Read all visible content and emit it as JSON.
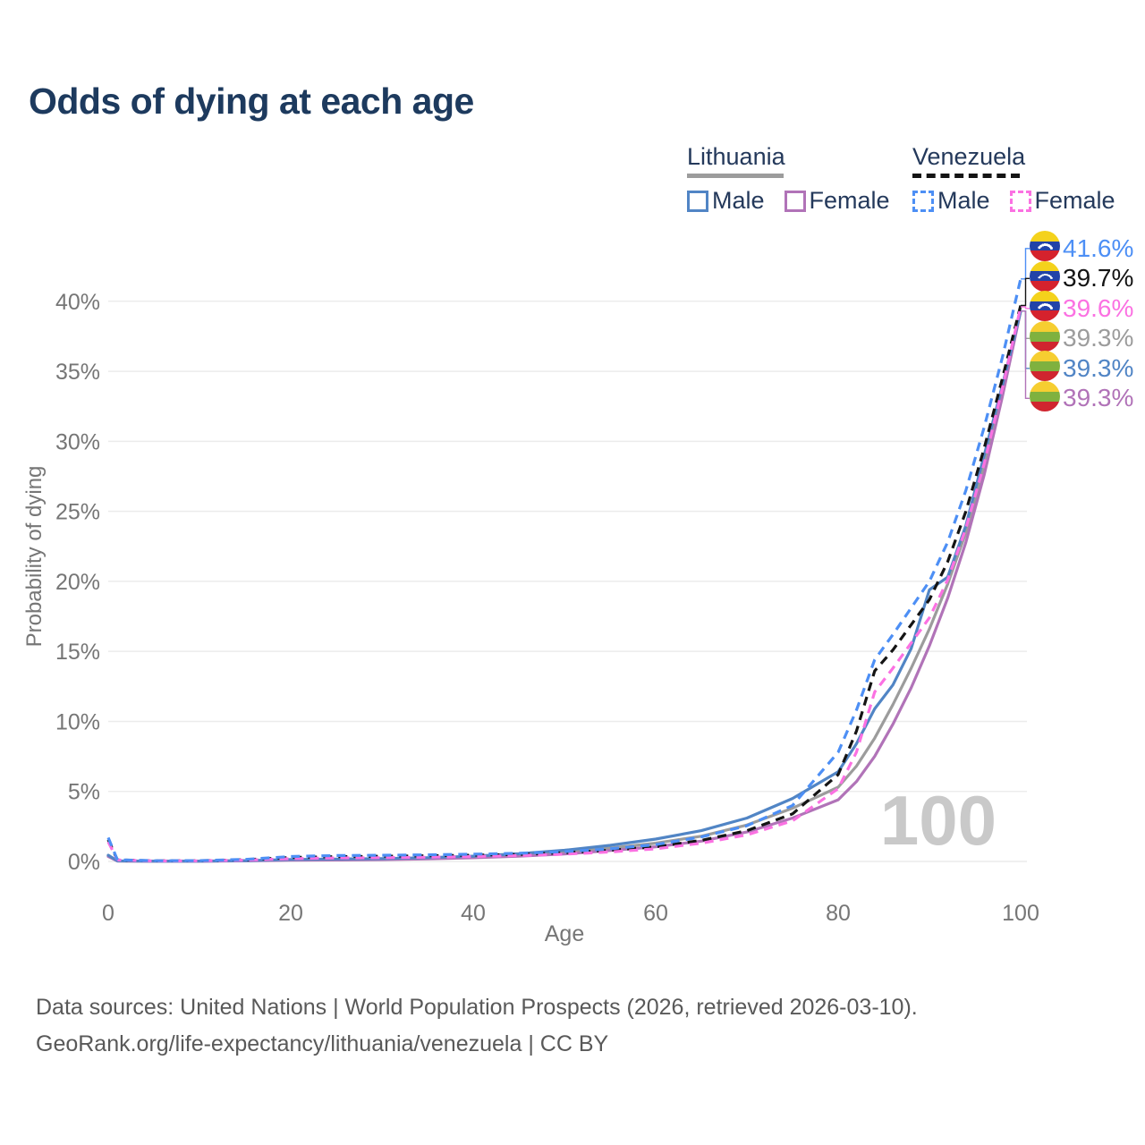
{
  "title": "Odds of dying at each age",
  "legend": {
    "groups": [
      {
        "country": "Lithuania",
        "style": "solid",
        "underline_color": "#9c9c9c",
        "items": [
          {
            "label": "Male",
            "color": "#5185c5"
          },
          {
            "label": "Female",
            "color": "#b173b8"
          }
        ]
      },
      {
        "country": "Venezuela",
        "style": "dashed",
        "underline_color": "#141414",
        "items": [
          {
            "label": "Male",
            "color": "#4d8ff5"
          },
          {
            "label": "Female",
            "color": "#fb71e2"
          }
        ]
      }
    ]
  },
  "axes": {
    "y_title": "Probability of dying",
    "x_title": "Age",
    "y_ticks": [
      "0%",
      "5%",
      "10%",
      "15%",
      "20%",
      "25%",
      "30%",
      "35%",
      "40%"
    ],
    "x_ticks": [
      "0",
      "20",
      "40",
      "60",
      "80",
      "100"
    ]
  },
  "watermark": "100",
  "end_labels": [
    {
      "text": "41.6%",
      "color": "#4d8ff5",
      "flag": "venezuela",
      "series": "venezuela_male"
    },
    {
      "text": "39.7%",
      "color": "#141414",
      "flag": "venezuela",
      "series": "venezuela_both"
    },
    {
      "text": "39.6%",
      "color": "#fb71e2",
      "flag": "venezuela",
      "series": "venezuela_female"
    },
    {
      "text": "39.3%",
      "color": "#9c9c9c",
      "flag": "lithuania",
      "series": "lithuania_both"
    },
    {
      "text": "39.3%",
      "color": "#5185c5",
      "flag": "lithuania",
      "series": "lithuania_male"
    },
    {
      "text": "39.3%",
      "color": "#b173b8",
      "flag": "lithuania",
      "series": "lithuania_female"
    }
  ],
  "footer": {
    "line1": "Data sources: United Nations | World Population Prospects (2026, retrieved 2026-03-10).",
    "line2": "GeoRank.org/life-expectancy/lithuania/venezuela | CC BY"
  },
  "colors": {
    "title": "#1d3a5e",
    "axis_text": "#767676",
    "gridline": "#ececec",
    "watermark": "#c9c9c9"
  },
  "flag_palettes": {
    "venezuela": {
      "bands": [
        "#F4D21C",
        "#2243A8",
        "#D5222D"
      ],
      "band_heights": [
        34,
        31,
        35
      ],
      "stars": true
    },
    "lithuania": {
      "bands": [
        "#F6CE31",
        "#7FB13F",
        "#D0252F"
      ],
      "band_heights": [
        35,
        32,
        33
      ],
      "stars": false
    }
  },
  "chart_data": {
    "type": "line",
    "title": "Odds of dying at each age",
    "xlabel": "Age",
    "ylabel": "Probability of dying",
    "xlim": [
      0,
      100
    ],
    "ylim_percent": [
      0,
      42
    ],
    "x_gridlines": [
      0,
      20,
      40,
      60,
      80,
      100
    ],
    "y_gridlines_percent": [
      0,
      5,
      10,
      15,
      20,
      25,
      30,
      35,
      40
    ],
    "grid": "horizontal-only",
    "legend_position": "top-right",
    "x": [
      0,
      1,
      5,
      10,
      15,
      20,
      25,
      30,
      35,
      40,
      45,
      50,
      55,
      60,
      65,
      70,
      75,
      80,
      82,
      84,
      86,
      88,
      90,
      92,
      94,
      96,
      98,
      100
    ],
    "series": [
      {
        "id": "lithuania_both",
        "name": "Lithuania (both sexes)",
        "color": "#9c9c9c",
        "dash": false,
        "values_percent": [
          0.4,
          0.035,
          0.018,
          0.018,
          0.05,
          0.11,
          0.14,
          0.17,
          0.23,
          0.32,
          0.46,
          0.66,
          0.95,
          1.3,
          1.8,
          2.6,
          3.8,
          5.3,
          6.8,
          8.8,
          11.2,
          13.8,
          16.6,
          19.8,
          23.5,
          28.2,
          33.6,
          39.3
        ]
      },
      {
        "id": "lithuania_female",
        "name": "Lithuania Female",
        "color": "#b173b8",
        "dash": false,
        "values_percent": [
          0.35,
          0.03,
          0.015,
          0.015,
          0.04,
          0.08,
          0.1,
          0.13,
          0.18,
          0.26,
          0.37,
          0.53,
          0.78,
          1.05,
          1.45,
          2.1,
          3.1,
          4.4,
          5.7,
          7.5,
          9.8,
          12.4,
          15.4,
          18.8,
          22.8,
          27.6,
          33.2,
          39.3
        ]
      },
      {
        "id": "lithuania_male",
        "name": "Lithuania Male",
        "color": "#5185c5",
        "dash": false,
        "values_percent": [
          0.45,
          0.04,
          0.02,
          0.02,
          0.06,
          0.14,
          0.17,
          0.2,
          0.27,
          0.38,
          0.55,
          0.8,
          1.15,
          1.6,
          2.2,
          3.1,
          4.5,
          6.4,
          8.4,
          10.9,
          12.6,
          15.2,
          19.4,
          20.3,
          24.0,
          29.0,
          34.0,
          39.3
        ]
      },
      {
        "id": "venezuela_both",
        "name": "Venezuela (both sexes)",
        "color": "#141414",
        "dash": true,
        "values_percent": [
          1.55,
          0.11,
          0.045,
          0.05,
          0.12,
          0.28,
          0.34,
          0.37,
          0.4,
          0.45,
          0.5,
          0.62,
          0.8,
          1.05,
          1.5,
          2.2,
          3.4,
          6.2,
          9.3,
          13.6,
          15.1,
          16.9,
          18.7,
          21.4,
          25.0,
          29.5,
          34.5,
          39.7
        ]
      },
      {
        "id": "venezuela_female",
        "name": "Venezuela Female",
        "color": "#fb71e2",
        "dash": true,
        "values_percent": [
          1.4,
          0.1,
          0.04,
          0.045,
          0.09,
          0.2,
          0.25,
          0.27,
          0.3,
          0.35,
          0.42,
          0.52,
          0.68,
          0.9,
          1.3,
          1.9,
          2.9,
          5.2,
          7.8,
          12.1,
          13.8,
          15.6,
          17.4,
          20.1,
          23.8,
          28.4,
          33.8,
          39.6
        ]
      },
      {
        "id": "venezuela_male",
        "name": "Venezuela Male",
        "color": "#4d8ff5",
        "dash": true,
        "values_percent": [
          1.7,
          0.12,
          0.05,
          0.06,
          0.15,
          0.35,
          0.42,
          0.44,
          0.47,
          0.52,
          0.58,
          0.7,
          0.9,
          1.2,
          1.75,
          2.55,
          4.0,
          7.8,
          10.8,
          14.4,
          16.2,
          18.1,
          20.0,
          22.8,
          26.5,
          31.0,
          36.0,
          41.6
        ]
      }
    ],
    "end_values_percent": {
      "venezuela_male": 41.6,
      "venezuela_both": 39.7,
      "venezuela_female": 39.6,
      "lithuania_both": 39.3,
      "lithuania_male": 39.3,
      "lithuania_female": 39.3
    }
  }
}
